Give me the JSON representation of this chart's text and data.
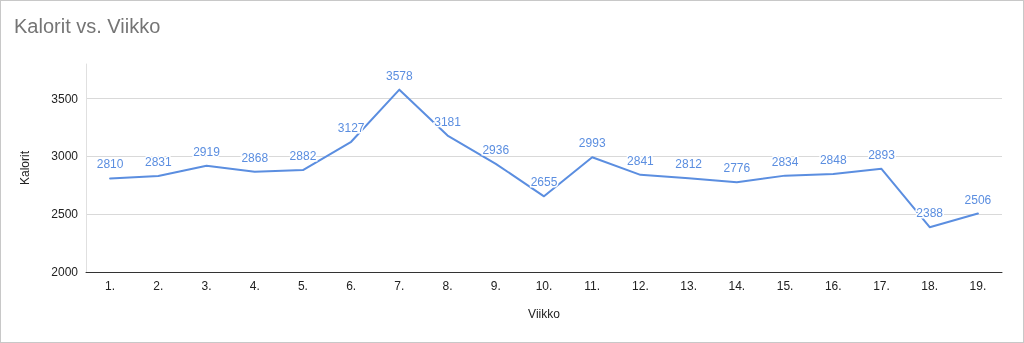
{
  "chart_data": {
    "type": "line",
    "title": "Kalorit vs. Viikko",
    "xlabel": "Viikko",
    "ylabel": "Kalorit",
    "categories": [
      "1.",
      "2.",
      "3.",
      "4.",
      "5.",
      "6.",
      "7.",
      "8.",
      "9.",
      "10.",
      "11.",
      "12.",
      "13.",
      "14.",
      "15.",
      "16.",
      "17.",
      "18.",
      "19."
    ],
    "series": [
      {
        "color": "#5b8ee0",
        "values": [
          2810,
          2831,
          2919,
          2868,
          2882,
          3127,
          3578,
          3181,
          2936,
          2655,
          2993,
          2841,
          2812,
          2776,
          2834,
          2848,
          2893,
          2388,
          2506
        ]
      }
    ],
    "ylim": [
      2000,
      3800
    ],
    "yticks": [
      2000,
      2500,
      3000,
      3500
    ],
    "grid": "y",
    "data_labels": true
  }
}
